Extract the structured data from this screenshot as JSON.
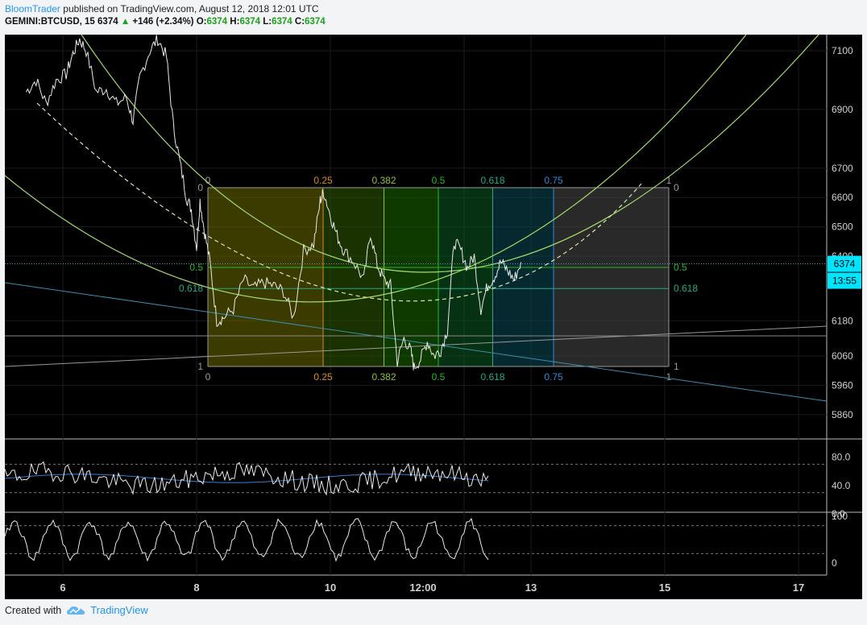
{
  "header": {
    "author": "BloomTrader",
    "published": "published on TradingView.com, August 12, 2018 12:01 UTC",
    "symbol": "GEMINI:BTCUSD, 15",
    "last": "6374",
    "change": "+146 (+2.34%)",
    "o_label": "O:",
    "o": "6374",
    "h_label": "H:",
    "h": "6374",
    "l_label": "L:",
    "l": "6374",
    "c_label": "C:",
    "c": "6374"
  },
  "footer": {
    "created_with": "Created with",
    "brand": "TradingView"
  },
  "colors": {
    "background": "#000000",
    "axis": "#a0a0a0",
    "price_badge": "#00e5ff",
    "candle_line": "#e8e8e8",
    "arc": "#a6d96a",
    "fib_green": "#22bb22",
    "fib_blue": "#2a8ad4"
  },
  "chart_data": [
    {
      "type": "line",
      "title": "",
      "series": [
        {
          "x": [
            5.45,
            5.6,
            5.75,
            5.9,
            6.05,
            6.15,
            6.25,
            6.35,
            6.5,
            6.65,
            6.8,
            6.95,
            7.05,
            7.15,
            7.3,
            7.42,
            7.55,
            7.65,
            7.75,
            7.85,
            7.92,
            8.0,
            8.05,
            8.12,
            8.2,
            8.3,
            8.4,
            8.55,
            8.7,
            8.85,
            9.0,
            9.15,
            9.3,
            9.45,
            9.6,
            9.75,
            9.85,
            9.9,
            10.0,
            10.1,
            10.2,
            10.35,
            10.5,
            10.6,
            10.7,
            10.8,
            10.9,
            11.0,
            11.1,
            11.2,
            11.25,
            11.35,
            11.45,
            11.55,
            11.65,
            11.75,
            11.85,
            11.95,
            12.05,
            12.15,
            12.25,
            12.35,
            12.45,
            12.55,
            12.65,
            12.75,
            12.85
          ],
          "y": [
            6960,
            7000,
            6920,
            7000,
            7020,
            7090,
            7140,
            7100,
            6960,
            6970,
            6920,
            6940,
            6860,
            7010,
            7100,
            7140,
            7080,
            6850,
            6720,
            6600,
            6560,
            6430,
            6590,
            6480,
            6380,
            6180,
            6190,
            6220,
            6320,
            6290,
            6310,
            6300,
            6280,
            6190,
            6420,
            6440,
            6590,
            6620,
            6540,
            6470,
            6420,
            6380,
            6320,
            6480,
            6370,
            6320,
            6300,
            6040,
            6120,
            6080,
            6020,
            6050,
            6110,
            6060,
            6080,
            6150,
            6450,
            6420,
            6360,
            6400,
            6220,
            6300,
            6330,
            6380,
            6350,
            6320,
            6380
          ]
        }
      ],
      "y_ticks": [
        "7100",
        "6900",
        "6700",
        "6600",
        "6500",
        "6400",
        "6180",
        "6060",
        "5960",
        "5860"
      ],
      "x_ticks": [
        "6",
        "8",
        "10",
        "12:00",
        "13",
        "15",
        "17"
      ],
      "last_price": "6374",
      "countdown": "13:55",
      "fib_top_labels": [
        "0",
        "0.25",
        "0.382",
        "0.5",
        "0.618",
        "0.75",
        "1"
      ],
      "fib_bottom_labels": [
        "0",
        "0.25",
        "0.382",
        "0.5",
        "0.618",
        "0.75",
        "1"
      ],
      "fib_side_labels": [
        "0",
        "0.5",
        "0.618",
        "1"
      ]
    },
    {
      "type": "line",
      "series": [
        {
          "x": [],
          "y": []
        }
      ],
      "y_ticks": [
        "80.0",
        "40.0",
        "0.0"
      ],
      "ylim": [
        0,
        100
      ],
      "levels": [
        70,
        30
      ]
    },
    {
      "type": "line",
      "series": [
        {
          "x": [],
          "y": []
        }
      ],
      "y_ticks": [
        "100",
        "0"
      ],
      "ylim": [
        0,
        100
      ],
      "levels": [
        80,
        20
      ]
    }
  ]
}
